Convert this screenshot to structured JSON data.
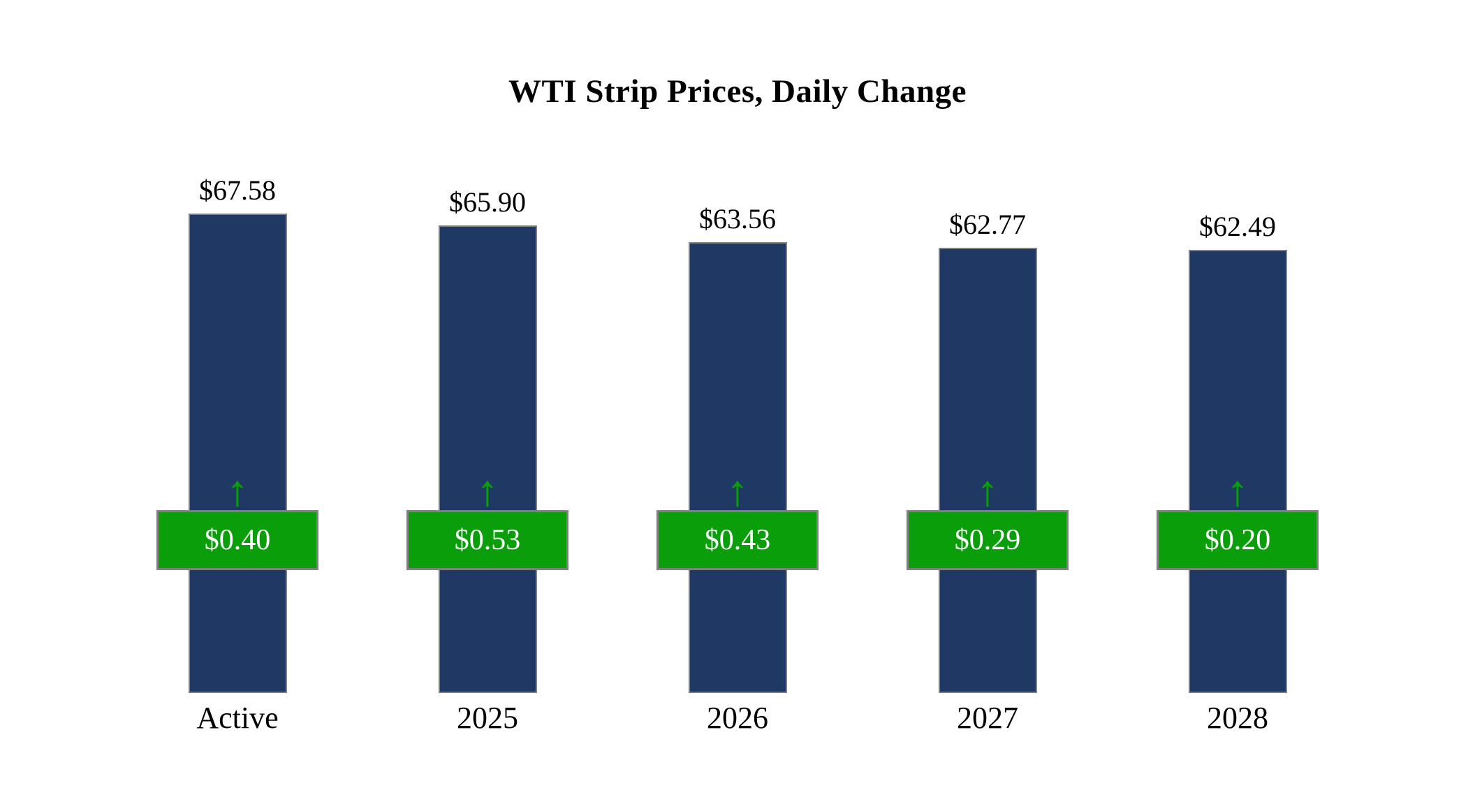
{
  "title": "WTI Strip Prices, Daily Change",
  "chart_data": {
    "type": "bar",
    "title": "WTI Strip Prices, Daily Change",
    "categories": [
      "Active",
      "2025",
      "2026",
      "2027",
      "2028"
    ],
    "series": [
      {
        "name": "Strip Price",
        "values": [
          67.58,
          65.9,
          63.56,
          62.77,
          62.49
        ]
      },
      {
        "name": "Daily Change",
        "values": [
          0.4,
          0.53,
          0.43,
          0.29,
          0.2
        ]
      }
    ],
    "price_labels": [
      "$67.58",
      "$65.90",
      "$63.56",
      "$62.77",
      "$62.49"
    ],
    "change_labels": [
      "$0.40",
      "$0.53",
      "$0.43",
      "$0.29",
      "$0.20"
    ],
    "change_direction": "up",
    "arrow_icon": "↑",
    "ylim": [
      0,
      70
    ],
    "grid": false,
    "legend": "none",
    "colors": {
      "bar": "#1f3864",
      "bar_border": "#808080",
      "change_badge": "#0a9e0a",
      "badge_border": "#808080",
      "badge_text": "#ffffff",
      "arrow": "#0a9e0a"
    }
  }
}
